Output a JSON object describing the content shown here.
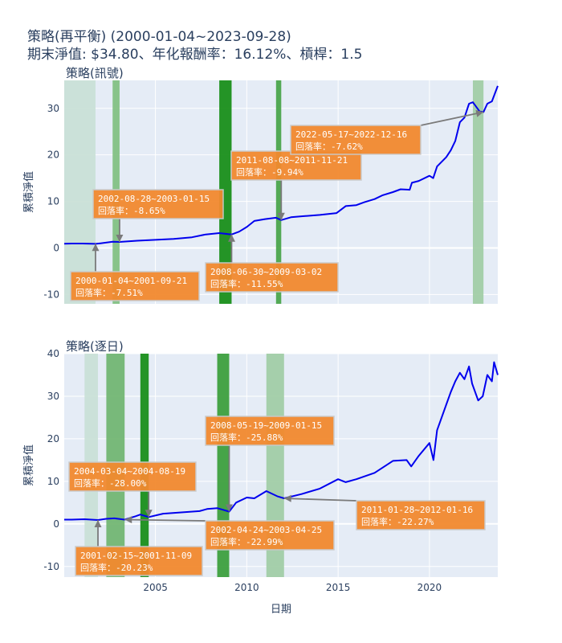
{
  "title_line1": "策略(再平衡) (2000-01-04~2023-09-28)",
  "title_line2": "期末淨值: $34.80、年化報酬率：16.12%、槓桿：1.5",
  "chart_data": [
    {
      "type": "line",
      "subplot_title": "策略(訊號)",
      "ylabel": "累積淨值",
      "xlabel": "",
      "xlim": [
        "2000-01-04",
        "2023-09-28"
      ],
      "ylim": [
        -12,
        36
      ],
      "yticks": [
        -10,
        0,
        10,
        20,
        30
      ],
      "line_color": "#0000ee",
      "series": [
        {
          "x": [
            "2000-01-04",
            "2000-06-01",
            "2001-01-01",
            "2001-09-21",
            "2002-01-01",
            "2002-08-28",
            "2003-01-15",
            "2004-01-01",
            "2005-01-01",
            "2006-01-01",
            "2007-01-01",
            "2007-10-01",
            "2008-06-30",
            "2009-03-02",
            "2009-08-01",
            "2010-01-01",
            "2010-06-01",
            "2011-01-01",
            "2011-08-08",
            "2011-11-21",
            "2012-06-01",
            "2013-01-01",
            "2014-01-01",
            "2014-12-01",
            "2015-06-01",
            "2016-01-01",
            "2016-06-01",
            "2017-01-01",
            "2017-06-01",
            "2018-01-01",
            "2018-06-01",
            "2018-12-01",
            "2019-01-15",
            "2019-06-01",
            "2020-01-01",
            "2020-03-15",
            "2020-06-01",
            "2020-12-01",
            "2021-03-01",
            "2021-06-01",
            "2021-09-01",
            "2021-12-01",
            "2022-03-01",
            "2022-05-17",
            "2022-10-01",
            "2022-12-16",
            "2023-03-01",
            "2023-06-01",
            "2023-09-28"
          ],
          "y": [
            0.9,
            0.95,
            0.95,
            0.88,
            1.0,
            1.35,
            1.3,
            1.55,
            1.75,
            1.95,
            2.3,
            2.9,
            3.2,
            2.9,
            3.5,
            4.5,
            5.8,
            6.2,
            6.5,
            6.0,
            6.6,
            6.8,
            7.1,
            7.5,
            9.0,
            9.2,
            9.8,
            10.5,
            11.3,
            12.0,
            12.6,
            12.5,
            14.0,
            14.4,
            15.5,
            15.0,
            17.5,
            19.5,
            21.0,
            23.0,
            27.0,
            28.0,
            31.0,
            31.3,
            29.3,
            29.2,
            31.0,
            31.5,
            34.8
          ]
        }
      ],
      "signal_bands": [
        {
          "start": "2000-01-04",
          "end": "2001-09-21",
          "color": "#c9dfd6"
        },
        {
          "start": "2002-08-28",
          "end": "2003-01-15",
          "color": "#80bf80"
        },
        {
          "start": "2008-06-30",
          "end": "2009-03-02",
          "color": "#138c13"
        },
        {
          "start": "2011-08-08",
          "end": "2011-11-21",
          "color": "#46a346"
        },
        {
          "start": "2022-05-17",
          "end": "2022-12-16",
          "color": "#a0cca4"
        }
      ],
      "annotations": [
        {
          "text1": "2000-01-04~2001-09-21",
          "text2": "回落率：-7.51%",
          "target_x": "2001-09-21",
          "target_y": 0.9
        },
        {
          "text1": "2002-08-28~2003-01-15",
          "text2": "回落率：-8.65%",
          "target_x": "2003-01-15",
          "target_y": 1.3
        },
        {
          "text1": "2008-06-30~2009-03-02",
          "text2": "回落率：-11.55%",
          "target_x": "2009-03-02",
          "target_y": 2.9
        },
        {
          "text1": "2011-08-08~2011-11-21",
          "text2": "回落率：-9.94%",
          "target_x": "2011-11-21",
          "target_y": 6.0
        },
        {
          "text1": "2022-05-17~2022-12-16",
          "text2": "回落率：-7.62%",
          "target_x": "2022-12-16",
          "target_y": 29.2
        }
      ]
    },
    {
      "type": "line",
      "subplot_title": "策略(逐日)",
      "ylabel": "累積淨值",
      "xlabel": "日期",
      "xlim": [
        "2000-01-04",
        "2023-09-28"
      ],
      "ylim": [
        -12.5,
        40
      ],
      "yticks": [
        -10,
        0,
        10,
        20,
        30,
        40
      ],
      "xticks": [
        "2005",
        "2010",
        "2015",
        "2020"
      ],
      "line_color": "#0000ee",
      "series": [
        {
          "x": [
            "2000-01-04",
            "2000-06-01",
            "2001-02-15",
            "2001-11-09",
            "2002-04-24",
            "2002-10-01",
            "2003-04-25",
            "2003-12-01",
            "2004-03-04",
            "2004-08-19",
            "2005-06-01",
            "2006-06-01",
            "2007-06-01",
            "2007-10-30",
            "2008-05-19",
            "2009-01-15",
            "2009-06-01",
            "2010-01-01",
            "2010-06-01",
            "2011-01-28",
            "2011-09-01",
            "2012-01-16",
            "2013-01-01",
            "2014-01-01",
            "2015-01-01",
            "2015-06-01",
            "2016-01-01",
            "2017-01-01",
            "2018-01-01",
            "2018-10-01",
            "2019-01-01",
            "2019-06-01",
            "2020-01-01",
            "2020-03-20",
            "2020-06-01",
            "2020-12-01",
            "2021-03-01",
            "2021-06-01",
            "2021-09-01",
            "2021-12-01",
            "2022-03-01",
            "2022-05-01",
            "2022-09-01",
            "2022-12-01",
            "2023-03-01",
            "2023-06-01",
            "2023-07-15",
            "2023-09-28"
          ],
          "y": [
            1.0,
            1.0,
            1.1,
            0.9,
            1.2,
            1.3,
            1.0,
            1.8,
            2.2,
            1.6,
            2.4,
            2.7,
            3.0,
            3.5,
            3.7,
            2.9,
            5.0,
            6.2,
            6.0,
            7.7,
            6.5,
            6.0,
            7.0,
            8.3,
            10.5,
            9.8,
            10.5,
            12.0,
            14.8,
            15.0,
            13.5,
            16.0,
            19.0,
            15.0,
            22.0,
            28.0,
            31.0,
            33.5,
            35.5,
            34.0,
            37.0,
            33.0,
            29.0,
            30.0,
            35.0,
            33.5,
            38.0,
            35.0
          ]
        }
      ],
      "signal_bands": [
        {
          "start": "2001-02-15",
          "end": "2001-11-09",
          "color": "#c9dfd6"
        },
        {
          "start": "2002-04-24",
          "end": "2003-04-25",
          "color": "#6fb46f"
        },
        {
          "start": "2004-03-04",
          "end": "2004-08-19",
          "color": "#138c13"
        },
        {
          "start": "2008-05-19",
          "end": "2009-01-15",
          "color": "#389d38"
        },
        {
          "start": "2011-01-28",
          "end": "2012-01-16",
          "color": "#a0cca4"
        }
      ],
      "annotations": [
        {
          "text1": "2004-03-04~2004-08-19",
          "text2": "回落率：-28.00%",
          "target_x": "2004-08-19",
          "target_y": 1.6
        },
        {
          "text1": "2008-05-19~2009-01-15",
          "text2": "回落率：-25.88%",
          "target_x": "2009-01-15",
          "target_y": 2.9
        },
        {
          "text1": "2011-01-28~2012-01-16",
          "text2": "回落率：-22.27%",
          "target_x": "2012-01-16",
          "target_y": 6.0
        },
        {
          "text1": "2002-04-24~2003-04-25",
          "text2": "回落率：-22.99%",
          "target_x": "2003-04-25",
          "target_y": 1.0
        },
        {
          "text1": "2001-02-15~2001-11-09",
          "text2": "回落率：-20.23%",
          "target_x": "2001-11-09",
          "target_y": 0.9
        }
      ]
    }
  ]
}
